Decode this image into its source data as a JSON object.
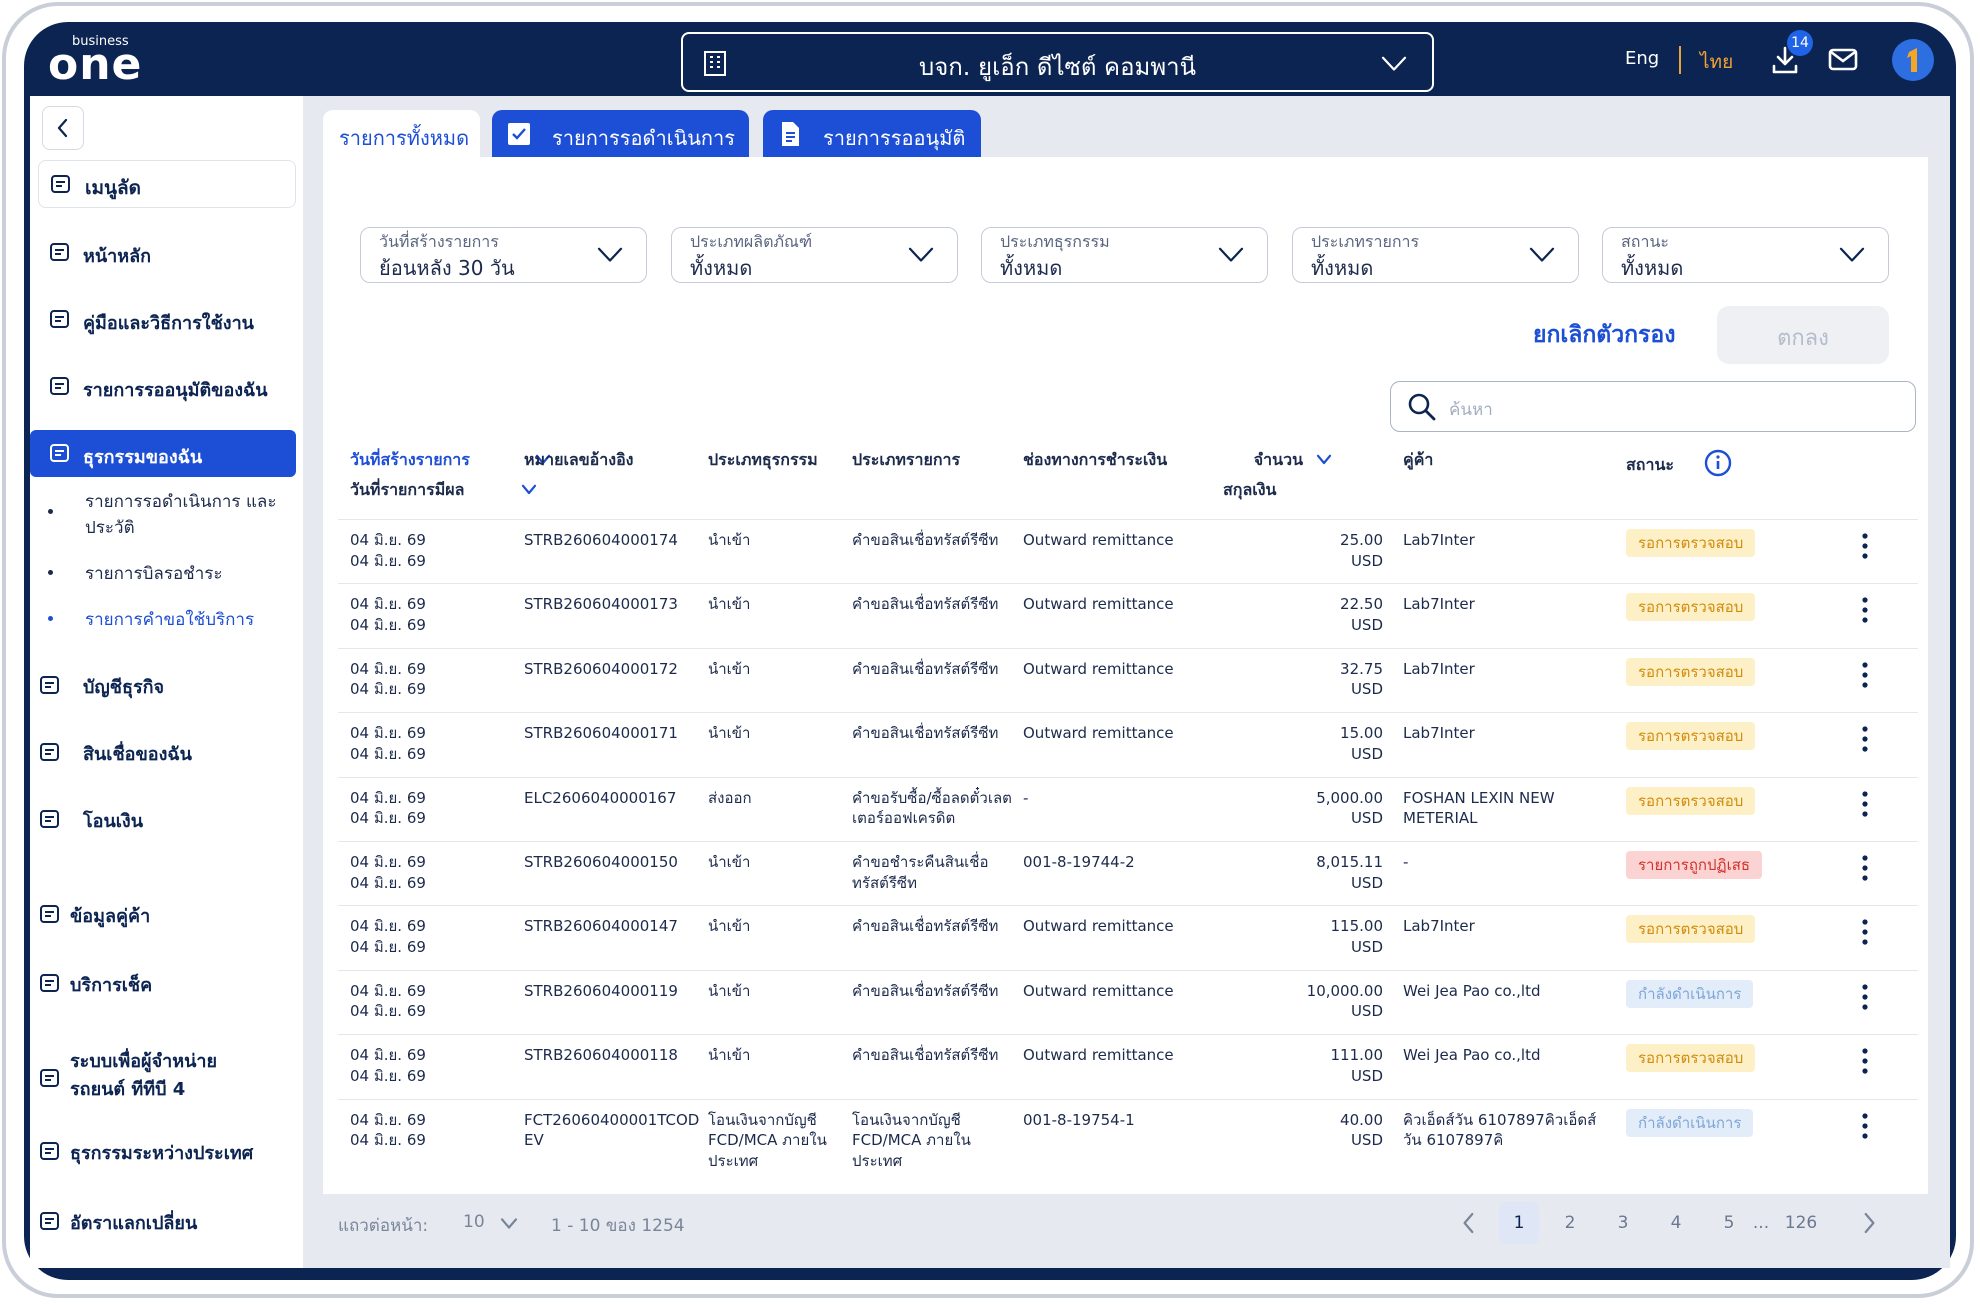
{
  "header": {
    "brand_small": "business",
    "brand": "one",
    "company": "บจก. ยูเอ็ก ดีไซต์ คอมพานี",
    "languages": [
      "Eng",
      "ไทย"
    ],
    "download_count": 14
  },
  "sidebar": {
    "shortcut": "เมนูลัด",
    "menu": [
      "หน้าหลัก",
      "คู่มือและวิธีการใช้งาน",
      "รายการรออนุมัติของฉัน",
      "ธุรกรรมของฉัน"
    ],
    "submenu": [
      "รายการรอดำเนินการ และประวัติ",
      "รายการบิลรอชำระ",
      "รายการคำขอใช้บริการ"
    ],
    "menu_more": [
      "บัญชีธุรกิจ",
      "สินเชื่อของฉัน",
      "โอนเงิน",
      "ข้อมูลคู่ค้า",
      "บริการเช็ค",
      "ระบบเพื่อผู้จำหน่าย รถยนต์ ทีทีบี 4",
      "ธุรกรรมระหว่างประเทศ",
      "อัตราแลกเปลี่ยน"
    ]
  },
  "tabs": [
    "รายการทั้งหมด",
    "รายการรอดำเนินการ",
    "รายการรออนุมัติ"
  ],
  "filters": [
    {
      "label": "วันที่สร้างรายการ",
      "value": "ย้อนหลัง 30 วัน"
    },
    {
      "label": "ประเภทผลิตภัณฑ์",
      "value": "ทั้งหมด"
    },
    {
      "label": "ประเภทธุรกรรม",
      "value": "ทั้งหมด"
    },
    {
      "label": "ประเภทรายการ",
      "value": "ทั้งหมด"
    },
    {
      "label": "สถานะ",
      "value": "ทั้งหมด"
    }
  ],
  "filter_actions": {
    "clear": "ยกเลิกตัวกรอง",
    "apply": "ตกลง"
  },
  "search": {
    "placeholder": "ค้นหา"
  },
  "table": {
    "columns": {
      "created": "วันที่สร้างรายการ",
      "effective": "วันที่รายการมีผล",
      "reference": "หมายเลขอ้างอิง",
      "transaction_type": "ประเภทธุรกรรม",
      "item_type": "ประเภทรายการ",
      "channel": "ช่องทางการชำระเงิน",
      "amount": "จำนวน",
      "currency": "สกุลเงิน",
      "partner": "คู่ค้า",
      "status": "สถานะ"
    },
    "rows": [
      {
        "created": "04 มิ.ย. 69",
        "effective": "04 มิ.ย. 69",
        "reference": "STRB260604000174",
        "transaction_type": "นำเข้า",
        "item_type": "คำขอสินเชื่อทรัสต์รีซีท",
        "channel": "Outward remittance",
        "amount": "25.00",
        "currency": "USD",
        "partner": "Lab7Inter",
        "status": "รอการตรวจสอบ",
        "status_color": "#d18c0c",
        "status_background": "#fdefc6"
      },
      {
        "created": "04 มิ.ย. 69",
        "effective": "04 มิ.ย. 69",
        "reference": "STRB260604000173",
        "transaction_type": "นำเข้า",
        "item_type": "คำขอสินเชื่อทรัสต์รีซีท",
        "channel": "Outward remittance",
        "amount": "22.50",
        "currency": "USD",
        "partner": "Lab7Inter",
        "status": "รอการตรวจสอบ",
        "status_color": "#d18c0c",
        "status_background": "#fdefc6"
      },
      {
        "created": "04 มิ.ย. 69",
        "effective": "04 มิ.ย. 69",
        "reference": "STRB260604000172",
        "transaction_type": "นำเข้า",
        "item_type": "คำขอสินเชื่อทรัสต์รีซีท",
        "channel": "Outward remittance",
        "amount": "32.75",
        "currency": "USD",
        "partner": "Lab7Inter",
        "status": "รอการตรวจสอบ",
        "status_color": "#d18c0c",
        "status_background": "#fdefc6"
      },
      {
        "created": "04 มิ.ย. 69",
        "effective": "04 มิ.ย. 69",
        "reference": "STRB260604000171",
        "transaction_type": "นำเข้า",
        "item_type": "คำขอสินเชื่อทรัสต์รีซีท",
        "channel": "Outward remittance",
        "amount": "15.00",
        "currency": "USD",
        "partner": "Lab7Inter",
        "status": "รอการตรวจสอบ",
        "status_color": "#d18c0c",
        "status_background": "#fdefc6"
      },
      {
        "created": "04 มิ.ย. 69",
        "effective": "04 มิ.ย. 69",
        "reference": "ELC2606040000167",
        "transaction_type": "ส่งออก",
        "item_type": "คำขอรับซื้อ/ซื้อลดตั๋วเลตเตอร์ออฟเครดิต",
        "channel": "-",
        "amount": "5,000.00",
        "currency": "USD",
        "partner": "FOSHAN LEXIN NEW METERIAL",
        "status": "รอการตรวจสอบ",
        "status_color": "#d18c0c",
        "status_background": "#fdefc6"
      },
      {
        "created": "04 มิ.ย. 69",
        "effective": "04 มิ.ย. 69",
        "reference": "STRB260604000150",
        "transaction_type": "นำเข้า",
        "item_type": "คำขอชำระคืนสินเชื่อทรัสต์รีซีท",
        "channel": "001-8-19744-2",
        "amount": "8,015.11",
        "currency": "USD",
        "partner": "-",
        "status": "รายการถูกปฏิเสธ",
        "status_color": "#d2322b",
        "status_background": "#fbd3d3"
      },
      {
        "created": "04 มิ.ย. 69",
        "effective": "04 มิ.ย. 69",
        "reference": "STRB260604000147",
        "transaction_type": "นำเข้า",
        "item_type": "คำขอสินเชื่อทรัสต์รีซีท",
        "channel": "Outward remittance",
        "amount": "115.00",
        "currency": "USD",
        "partner": "Lab7Inter",
        "status": "รอการตรวจสอบ",
        "status_color": "#d18c0c",
        "status_background": "#fdefc6"
      },
      {
        "created": "04 มิ.ย. 69",
        "effective": "04 มิ.ย. 69",
        "reference": "STRB260604000119",
        "transaction_type": "นำเข้า",
        "item_type": "คำขอสินเชื่อทรัสต์รีซีท",
        "channel": "Outward remittance",
        "amount": "10,000.00",
        "currency": "USD",
        "partner": "Wei Jea Pao co.,ltd",
        "status": "กำลังดำเนินการ",
        "status_color": "#7fa6d8",
        "status_background": "#e2edf9"
      },
      {
        "created": "04 มิ.ย. 69",
        "effective": "04 มิ.ย. 69",
        "reference": "STRB260604000118",
        "transaction_type": "นำเข้า",
        "item_type": "คำขอสินเชื่อทรัสต์รีซีท",
        "channel": "Outward remittance",
        "amount": "111.00",
        "currency": "USD",
        "partner": "Wei Jea Pao co.,ltd",
        "status": "รอการตรวจสอบ",
        "status_color": "#d18c0c",
        "status_background": "#fdefc6"
      },
      {
        "created": "04 มิ.ย. 69",
        "effective": "04 มิ.ย. 69",
        "reference": "FCT26060400001TCODEV",
        "transaction_type": "โอนเงินจากบัญชี FCD/MCA ภายในประเทศ",
        "item_type": "โอนเงินจากบัญชี FCD/MCA ภายในประเทศ",
        "channel": "001-8-19754-1",
        "amount": "40.00",
        "currency": "USD",
        "partner": "คิวเอ็ดส์วัน 6107897คิวเอ็ดส์วัน 6107897คิ",
        "status": "กำลังดำเนินการ",
        "status_color": "#7fa6d8",
        "status_background": "#e2edf9"
      }
    ]
  },
  "pagination": {
    "rows_per_page_label": "แถวต่อหน้า:",
    "rows_per_page": 10,
    "range": "1 - 10 ของ 1254",
    "pages": [
      1,
      2,
      3,
      4,
      5,
      "...",
      126
    ]
  }
}
